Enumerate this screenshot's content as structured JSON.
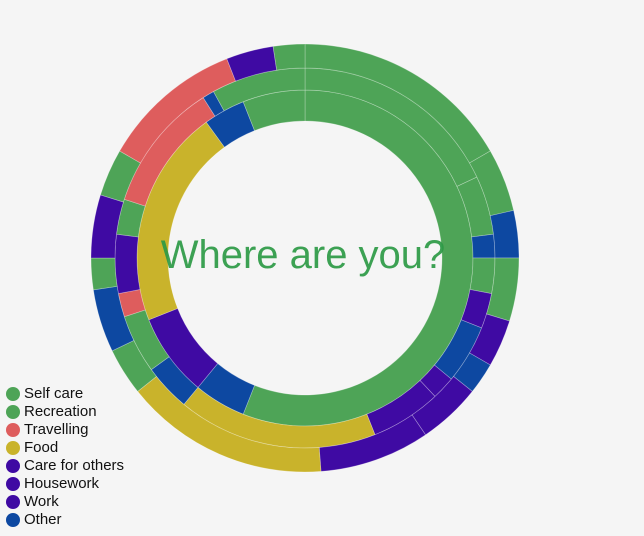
{
  "chart_data": {
    "type": "sunburst",
    "title": "Where are you?",
    "legend_position": "bottom-left",
    "categories": [
      {
        "name": "Self care",
        "color": "#4ea457"
      },
      {
        "name": "Recreation",
        "color": "#4ea457"
      },
      {
        "name": "Travelling",
        "color": "#de5d5d"
      },
      {
        "name": "Food",
        "color": "#c9b32b"
      },
      {
        "name": "Care for others",
        "color": "#3f0aa3"
      },
      {
        "name": "Housework",
        "color": "#3f0aa3"
      },
      {
        "name": "Work",
        "color": "#3f0aa3"
      },
      {
        "name": "Other",
        "color": "#0d48a1"
      }
    ],
    "rings": [
      {
        "level": 1,
        "segments": [
          {
            "category": "Self care",
            "share": 0.56
          },
          {
            "category": "Other",
            "share": 0.05
          },
          {
            "category": "Care for others",
            "share": 0.08
          },
          {
            "category": "Food",
            "share": 0.21
          },
          {
            "category": "Other",
            "share": 0.04
          },
          {
            "category": "Recreation",
            "share": 0.06
          }
        ]
      },
      {
        "level": 2,
        "segments": [
          {
            "category": "Self care",
            "share": 0.18
          },
          {
            "category": "Recreation",
            "share": 0.05
          },
          {
            "category": "Other",
            "share": 0.02
          },
          {
            "category": "Recreation",
            "share": 0.03
          },
          {
            "category": "Work",
            "share": 0.03
          },
          {
            "category": "Other",
            "share": 0.05
          },
          {
            "category": "Care for others",
            "share": 0.02
          },
          {
            "category": "Work",
            "share": 0.06
          },
          {
            "category": "Food",
            "share": 0.17
          },
          {
            "category": "Other",
            "share": 0.04
          },
          {
            "category": "Recreation",
            "share": 0.05
          },
          {
            "category": "Travelling",
            "share": 0.02
          },
          {
            "category": "Work",
            "share": 0.05
          },
          {
            "category": "Recreation",
            "share": 0.03
          },
          {
            "category": "Travelling",
            "share": 0.11
          },
          {
            "category": "Other",
            "share": 0.01
          },
          {
            "category": "Self care",
            "share": 0.08
          }
        ]
      },
      {
        "level": 3,
        "segments": [
          {
            "category": "Self care",
            "share": 0.14
          },
          {
            "category": "Recreation",
            "share": 0.04
          },
          {
            "category": "Other",
            "share": 0.03
          },
          {
            "category": "Recreation",
            "share": 0.04
          },
          {
            "category": "Work",
            "share": 0.03
          },
          {
            "category": "Other",
            "share": 0.02
          },
          {
            "category": "Housework",
            "share": 0.04
          },
          {
            "category": "Care for others",
            "share": 0.07
          },
          {
            "category": "Food",
            "share": 0.13
          },
          {
            "category": "Recreation",
            "share": 0.03
          },
          {
            "category": "Other",
            "share": 0.04
          },
          {
            "category": "Recreation",
            "share": 0.02
          },
          {
            "category": "Work",
            "share": 0.04
          },
          {
            "category": "Recreation",
            "share": 0.03
          },
          {
            "category": "Travelling",
            "share": 0.09
          },
          {
            "category": "Work",
            "share": 0.03
          },
          {
            "category": "Recreation",
            "share": 0.02
          }
        ]
      }
    ]
  }
}
